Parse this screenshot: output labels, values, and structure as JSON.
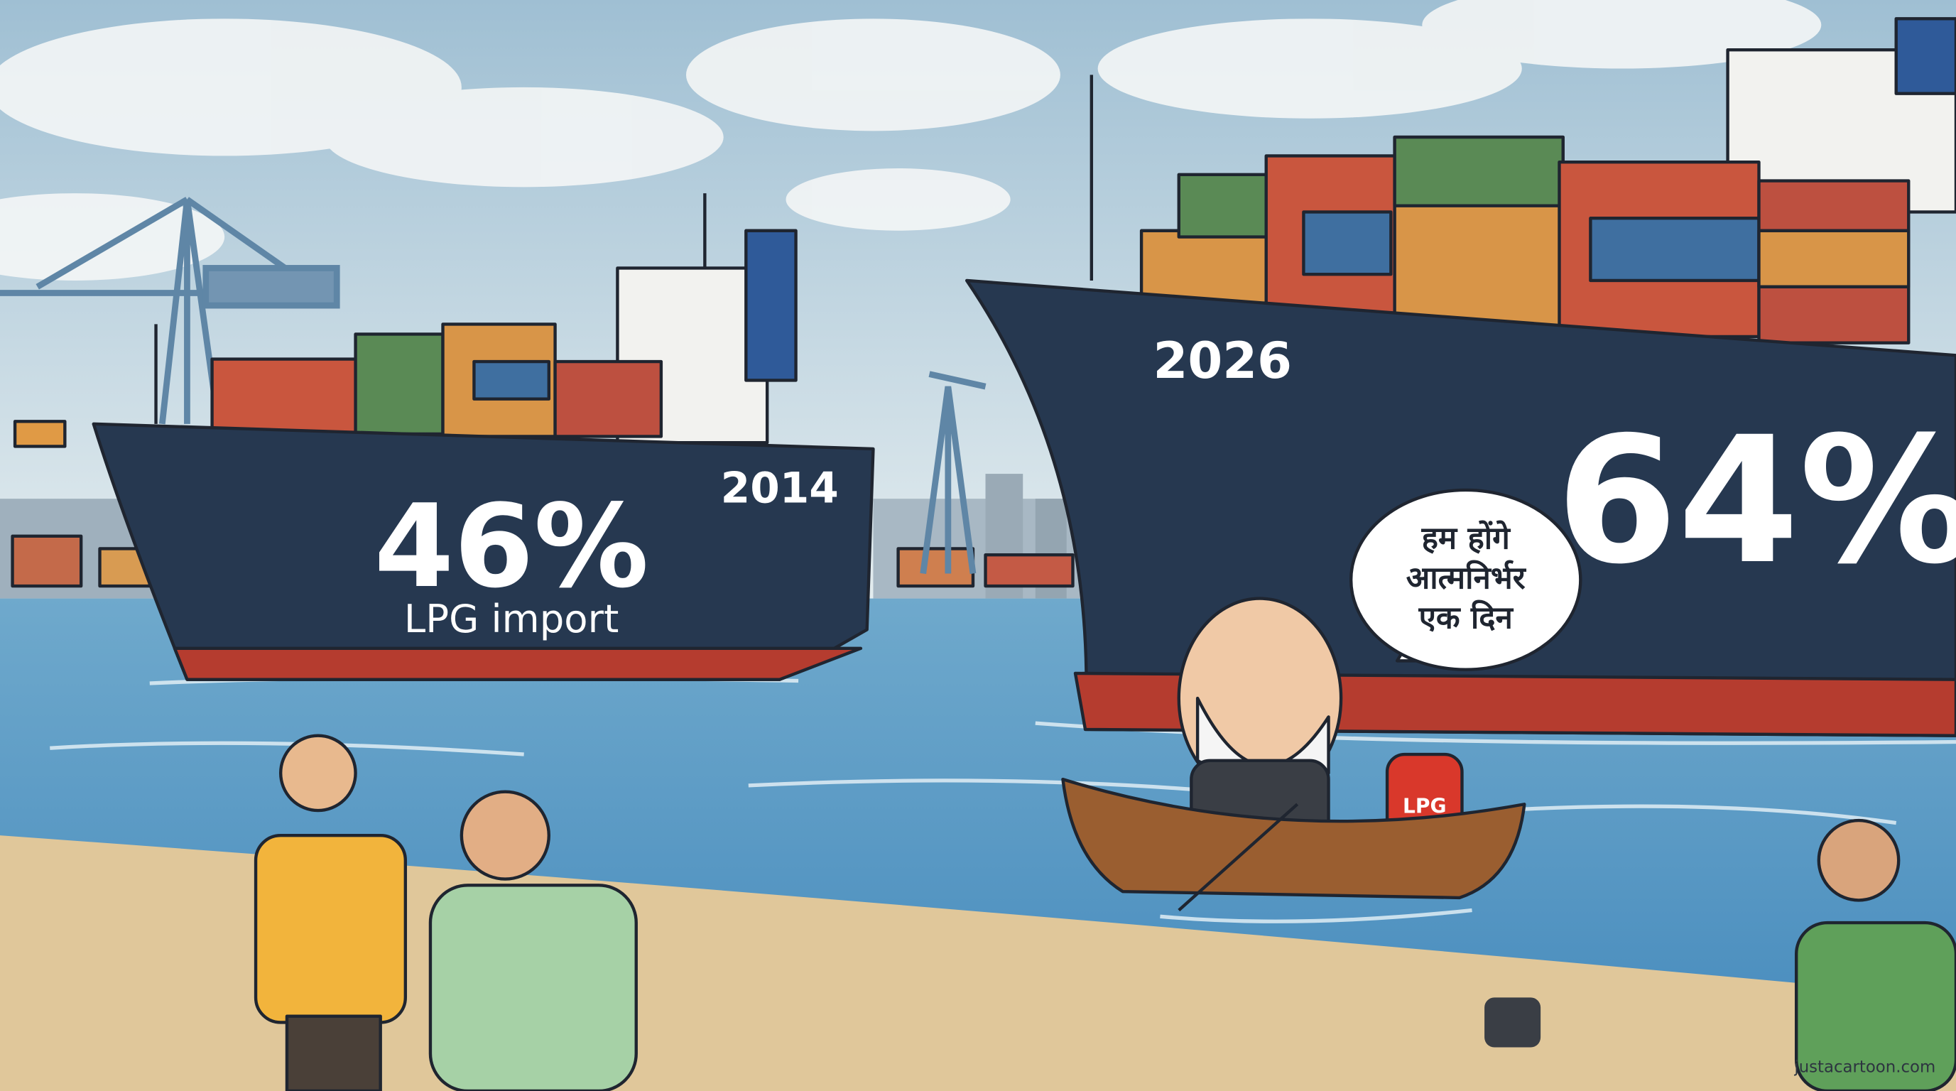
{
  "ships": [
    {
      "year": "2014",
      "share": "46%",
      "label": "LPG import"
    },
    {
      "year": "2026",
      "share": "64%"
    }
  ],
  "speech_bubble": {
    "lines": [
      "हम होंगे",
      "आत्मनिर्भर",
      "एक दिन"
    ]
  },
  "cylinder_label": "LPG",
  "watermark": "justacartoon.com"
}
